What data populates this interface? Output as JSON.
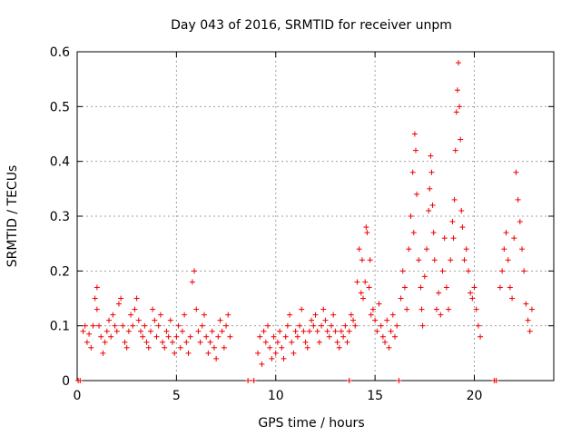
{
  "chart_data": {
    "type": "scatter",
    "title": "Day 043 of 2016, SRMTID for receiver unpm",
    "xlabel": "GPS time / hours",
    "ylabel": "SRMTID / TECUs",
    "xlim": [
      0,
      24
    ],
    "ylim": [
      0,
      0.6
    ],
    "x_ticks": [
      0,
      5,
      10,
      15,
      20
    ],
    "x_tick_labels": [
      "0",
      "5",
      "10",
      "15",
      "20"
    ],
    "y_ticks": [
      0,
      0.1,
      0.2,
      0.3,
      0.4,
      0.5,
      0.6
    ],
    "y_tick_labels": [
      "0",
      "0.1",
      "0.2",
      "0.3",
      "0.4",
      "0.5",
      "0.6"
    ],
    "grid": true,
    "marker": "+",
    "color": "#ee0000",
    "series": [
      {
        "name": "SRMTID",
        "points": [
          [
            0.05,
            0
          ],
          [
            0.15,
            0
          ],
          [
            16.2,
            0
          ],
          [
            21.0,
            0
          ],
          [
            21.1,
            0
          ],
          [
            8.6,
            0
          ],
          [
            8.9,
            0
          ],
          [
            13.7,
            0
          ],
          [
            0.3,
            0.09
          ],
          [
            0.4,
            0.1
          ],
          [
            0.5,
            0.07
          ],
          [
            0.6,
            0.085
          ],
          [
            0.7,
            0.06
          ],
          [
            0.8,
            0.1
          ],
          [
            0.9,
            0.15
          ],
          [
            1.0,
            0.17
          ],
          [
            1.0,
            0.13
          ],
          [
            1.1,
            0.1
          ],
          [
            1.2,
            0.08
          ],
          [
            1.3,
            0.05
          ],
          [
            1.4,
            0.07
          ],
          [
            1.5,
            0.09
          ],
          [
            1.6,
            0.11
          ],
          [
            1.7,
            0.08
          ],
          [
            1.8,
            0.12
          ],
          [
            1.9,
            0.1
          ],
          [
            2.0,
            0.09
          ],
          [
            2.1,
            0.14
          ],
          [
            2.2,
            0.15
          ],
          [
            2.3,
            0.1
          ],
          [
            2.4,
            0.07
          ],
          [
            2.5,
            0.06
          ],
          [
            2.6,
            0.09
          ],
          [
            2.7,
            0.12
          ],
          [
            2.8,
            0.1
          ],
          [
            2.9,
            0.13
          ],
          [
            3.0,
            0.15
          ],
          [
            3.1,
            0.11
          ],
          [
            3.2,
            0.09
          ],
          [
            3.3,
            0.08
          ],
          [
            3.4,
            0.1
          ],
          [
            3.5,
            0.07
          ],
          [
            3.6,
            0.06
          ],
          [
            3.7,
            0.09
          ],
          [
            3.8,
            0.13
          ],
          [
            3.9,
            0.11
          ],
          [
            4.0,
            0.08
          ],
          [
            4.1,
            0.1
          ],
          [
            4.2,
            0.12
          ],
          [
            4.3,
            0.07
          ],
          [
            4.4,
            0.06
          ],
          [
            4.5,
            0.09
          ],
          [
            4.6,
            0.08
          ],
          [
            4.7,
            0.11
          ],
          [
            4.8,
            0.07
          ],
          [
            4.9,
            0.05
          ],
          [
            5.0,
            0.08
          ],
          [
            5.1,
            0.1
          ],
          [
            5.2,
            0.06
          ],
          [
            5.3,
            0.09
          ],
          [
            5.4,
            0.12
          ],
          [
            5.5,
            0.07
          ],
          [
            5.6,
            0.05
          ],
          [
            5.7,
            0.08
          ],
          [
            5.8,
            0.18
          ],
          [
            5.9,
            0.2
          ],
          [
            6.0,
            0.13
          ],
          [
            6.1,
            0.09
          ],
          [
            6.2,
            0.07
          ],
          [
            6.3,
            0.1
          ],
          [
            6.4,
            0.12
          ],
          [
            6.5,
            0.08
          ],
          [
            6.6,
            0.05
          ],
          [
            6.7,
            0.07
          ],
          [
            6.8,
            0.09
          ],
          [
            6.9,
            0.06
          ],
          [
            7.0,
            0.04
          ],
          [
            7.1,
            0.08
          ],
          [
            7.2,
            0.11
          ],
          [
            7.3,
            0.09
          ],
          [
            7.4,
            0.06
          ],
          [
            7.5,
            0.1
          ],
          [
            7.6,
            0.12
          ],
          [
            7.7,
            0.08
          ],
          [
            9.1,
            0.05
          ],
          [
            9.2,
            0.08
          ],
          [
            9.3,
            0.03
          ],
          [
            9.4,
            0.09
          ],
          [
            9.5,
            0.07
          ],
          [
            9.6,
            0.1
          ],
          [
            9.7,
            0.06
          ],
          [
            9.8,
            0.04
          ],
          [
            9.9,
            0.08
          ],
          [
            10.0,
            0.05
          ],
          [
            10.1,
            0.07
          ],
          [
            10.2,
            0.09
          ],
          [
            10.3,
            0.06
          ],
          [
            10.4,
            0.04
          ],
          [
            10.5,
            0.08
          ],
          [
            10.6,
            0.1
          ],
          [
            10.7,
            0.12
          ],
          [
            10.8,
            0.07
          ],
          [
            10.9,
            0.05
          ],
          [
            11.0,
            0.09
          ],
          [
            11.1,
            0.08
          ],
          [
            11.2,
            0.1
          ],
          [
            11.3,
            0.13
          ],
          [
            11.4,
            0.09
          ],
          [
            11.5,
            0.07
          ],
          [
            11.6,
            0.06
          ],
          [
            11.7,
            0.09
          ],
          [
            11.8,
            0.11
          ],
          [
            11.9,
            0.1
          ],
          [
            12.0,
            0.12
          ],
          [
            12.1,
            0.09
          ],
          [
            12.2,
            0.07
          ],
          [
            12.3,
            0.1
          ],
          [
            12.4,
            0.13
          ],
          [
            12.5,
            0.11
          ],
          [
            12.6,
            0.09
          ],
          [
            12.7,
            0.08
          ],
          [
            12.8,
            0.1
          ],
          [
            12.9,
            0.12
          ],
          [
            13.0,
            0.09
          ],
          [
            13.1,
            0.07
          ],
          [
            13.2,
            0.06
          ],
          [
            13.3,
            0.09
          ],
          [
            13.4,
            0.08
          ],
          [
            13.5,
            0.1
          ],
          [
            13.6,
            0.07
          ],
          [
            13.7,
            0.09
          ],
          [
            13.8,
            0.12
          ],
          [
            13.9,
            0.11
          ],
          [
            14.0,
            0.1
          ],
          [
            14.1,
            0.18
          ],
          [
            14.2,
            0.24
          ],
          [
            14.3,
            0.16
          ],
          [
            14.35,
            0.22
          ],
          [
            14.4,
            0.15
          ],
          [
            14.5,
            0.18
          ],
          [
            14.55,
            0.28
          ],
          [
            14.6,
            0.27
          ],
          [
            14.7,
            0.17
          ],
          [
            14.75,
            0.22
          ],
          [
            14.8,
            0.12
          ],
          [
            14.9,
            0.13
          ],
          [
            15.0,
            0.11
          ],
          [
            15.1,
            0.09
          ],
          [
            15.2,
            0.14
          ],
          [
            15.3,
            0.1
          ],
          [
            15.4,
            0.08
          ],
          [
            15.5,
            0.07
          ],
          [
            15.6,
            0.11
          ],
          [
            15.7,
            0.06
          ],
          [
            15.8,
            0.09
          ],
          [
            15.9,
            0.12
          ],
          [
            16.0,
            0.08
          ],
          [
            16.1,
            0.1
          ],
          [
            16.3,
            0.15
          ],
          [
            16.4,
            0.2
          ],
          [
            16.5,
            0.17
          ],
          [
            16.6,
            0.13
          ],
          [
            16.7,
            0.24
          ],
          [
            16.8,
            0.3
          ],
          [
            16.9,
            0.38
          ],
          [
            16.95,
            0.27
          ],
          [
            17.0,
            0.45
          ],
          [
            17.05,
            0.42
          ],
          [
            17.1,
            0.34
          ],
          [
            17.2,
            0.22
          ],
          [
            17.3,
            0.17
          ],
          [
            17.35,
            0.13
          ],
          [
            17.4,
            0.1
          ],
          [
            17.5,
            0.19
          ],
          [
            17.6,
            0.24
          ],
          [
            17.7,
            0.31
          ],
          [
            17.75,
            0.35
          ],
          [
            17.8,
            0.41
          ],
          [
            17.85,
            0.38
          ],
          [
            17.9,
            0.32
          ],
          [
            17.95,
            0.27
          ],
          [
            18.0,
            0.22
          ],
          [
            18.1,
            0.13
          ],
          [
            18.2,
            0.16
          ],
          [
            18.3,
            0.12
          ],
          [
            18.4,
            0.2
          ],
          [
            18.5,
            0.26
          ],
          [
            18.6,
            0.17
          ],
          [
            18.7,
            0.13
          ],
          [
            18.8,
            0.22
          ],
          [
            18.9,
            0.29
          ],
          [
            18.95,
            0.26
          ],
          [
            19.0,
            0.33
          ],
          [
            19.05,
            0.42
          ],
          [
            19.1,
            0.49
          ],
          [
            19.15,
            0.53
          ],
          [
            19.2,
            0.58
          ],
          [
            19.25,
            0.5
          ],
          [
            19.3,
            0.44
          ],
          [
            19.35,
            0.31
          ],
          [
            19.4,
            0.28
          ],
          [
            19.5,
            0.22
          ],
          [
            19.6,
            0.24
          ],
          [
            19.7,
            0.2
          ],
          [
            19.8,
            0.16
          ],
          [
            19.9,
            0.15
          ],
          [
            20.0,
            0.17
          ],
          [
            20.1,
            0.13
          ],
          [
            20.2,
            0.1
          ],
          [
            20.3,
            0.08
          ],
          [
            21.3,
            0.17
          ],
          [
            21.4,
            0.2
          ],
          [
            21.5,
            0.24
          ],
          [
            21.6,
            0.27
          ],
          [
            21.7,
            0.22
          ],
          [
            21.8,
            0.17
          ],
          [
            21.9,
            0.15
          ],
          [
            22.0,
            0.26
          ],
          [
            22.1,
            0.38
          ],
          [
            22.2,
            0.33
          ],
          [
            22.3,
            0.29
          ],
          [
            22.4,
            0.24
          ],
          [
            22.5,
            0.2
          ],
          [
            22.6,
            0.14
          ],
          [
            22.7,
            0.11
          ],
          [
            22.8,
            0.09
          ],
          [
            22.9,
            0.13
          ]
        ]
      }
    ]
  }
}
